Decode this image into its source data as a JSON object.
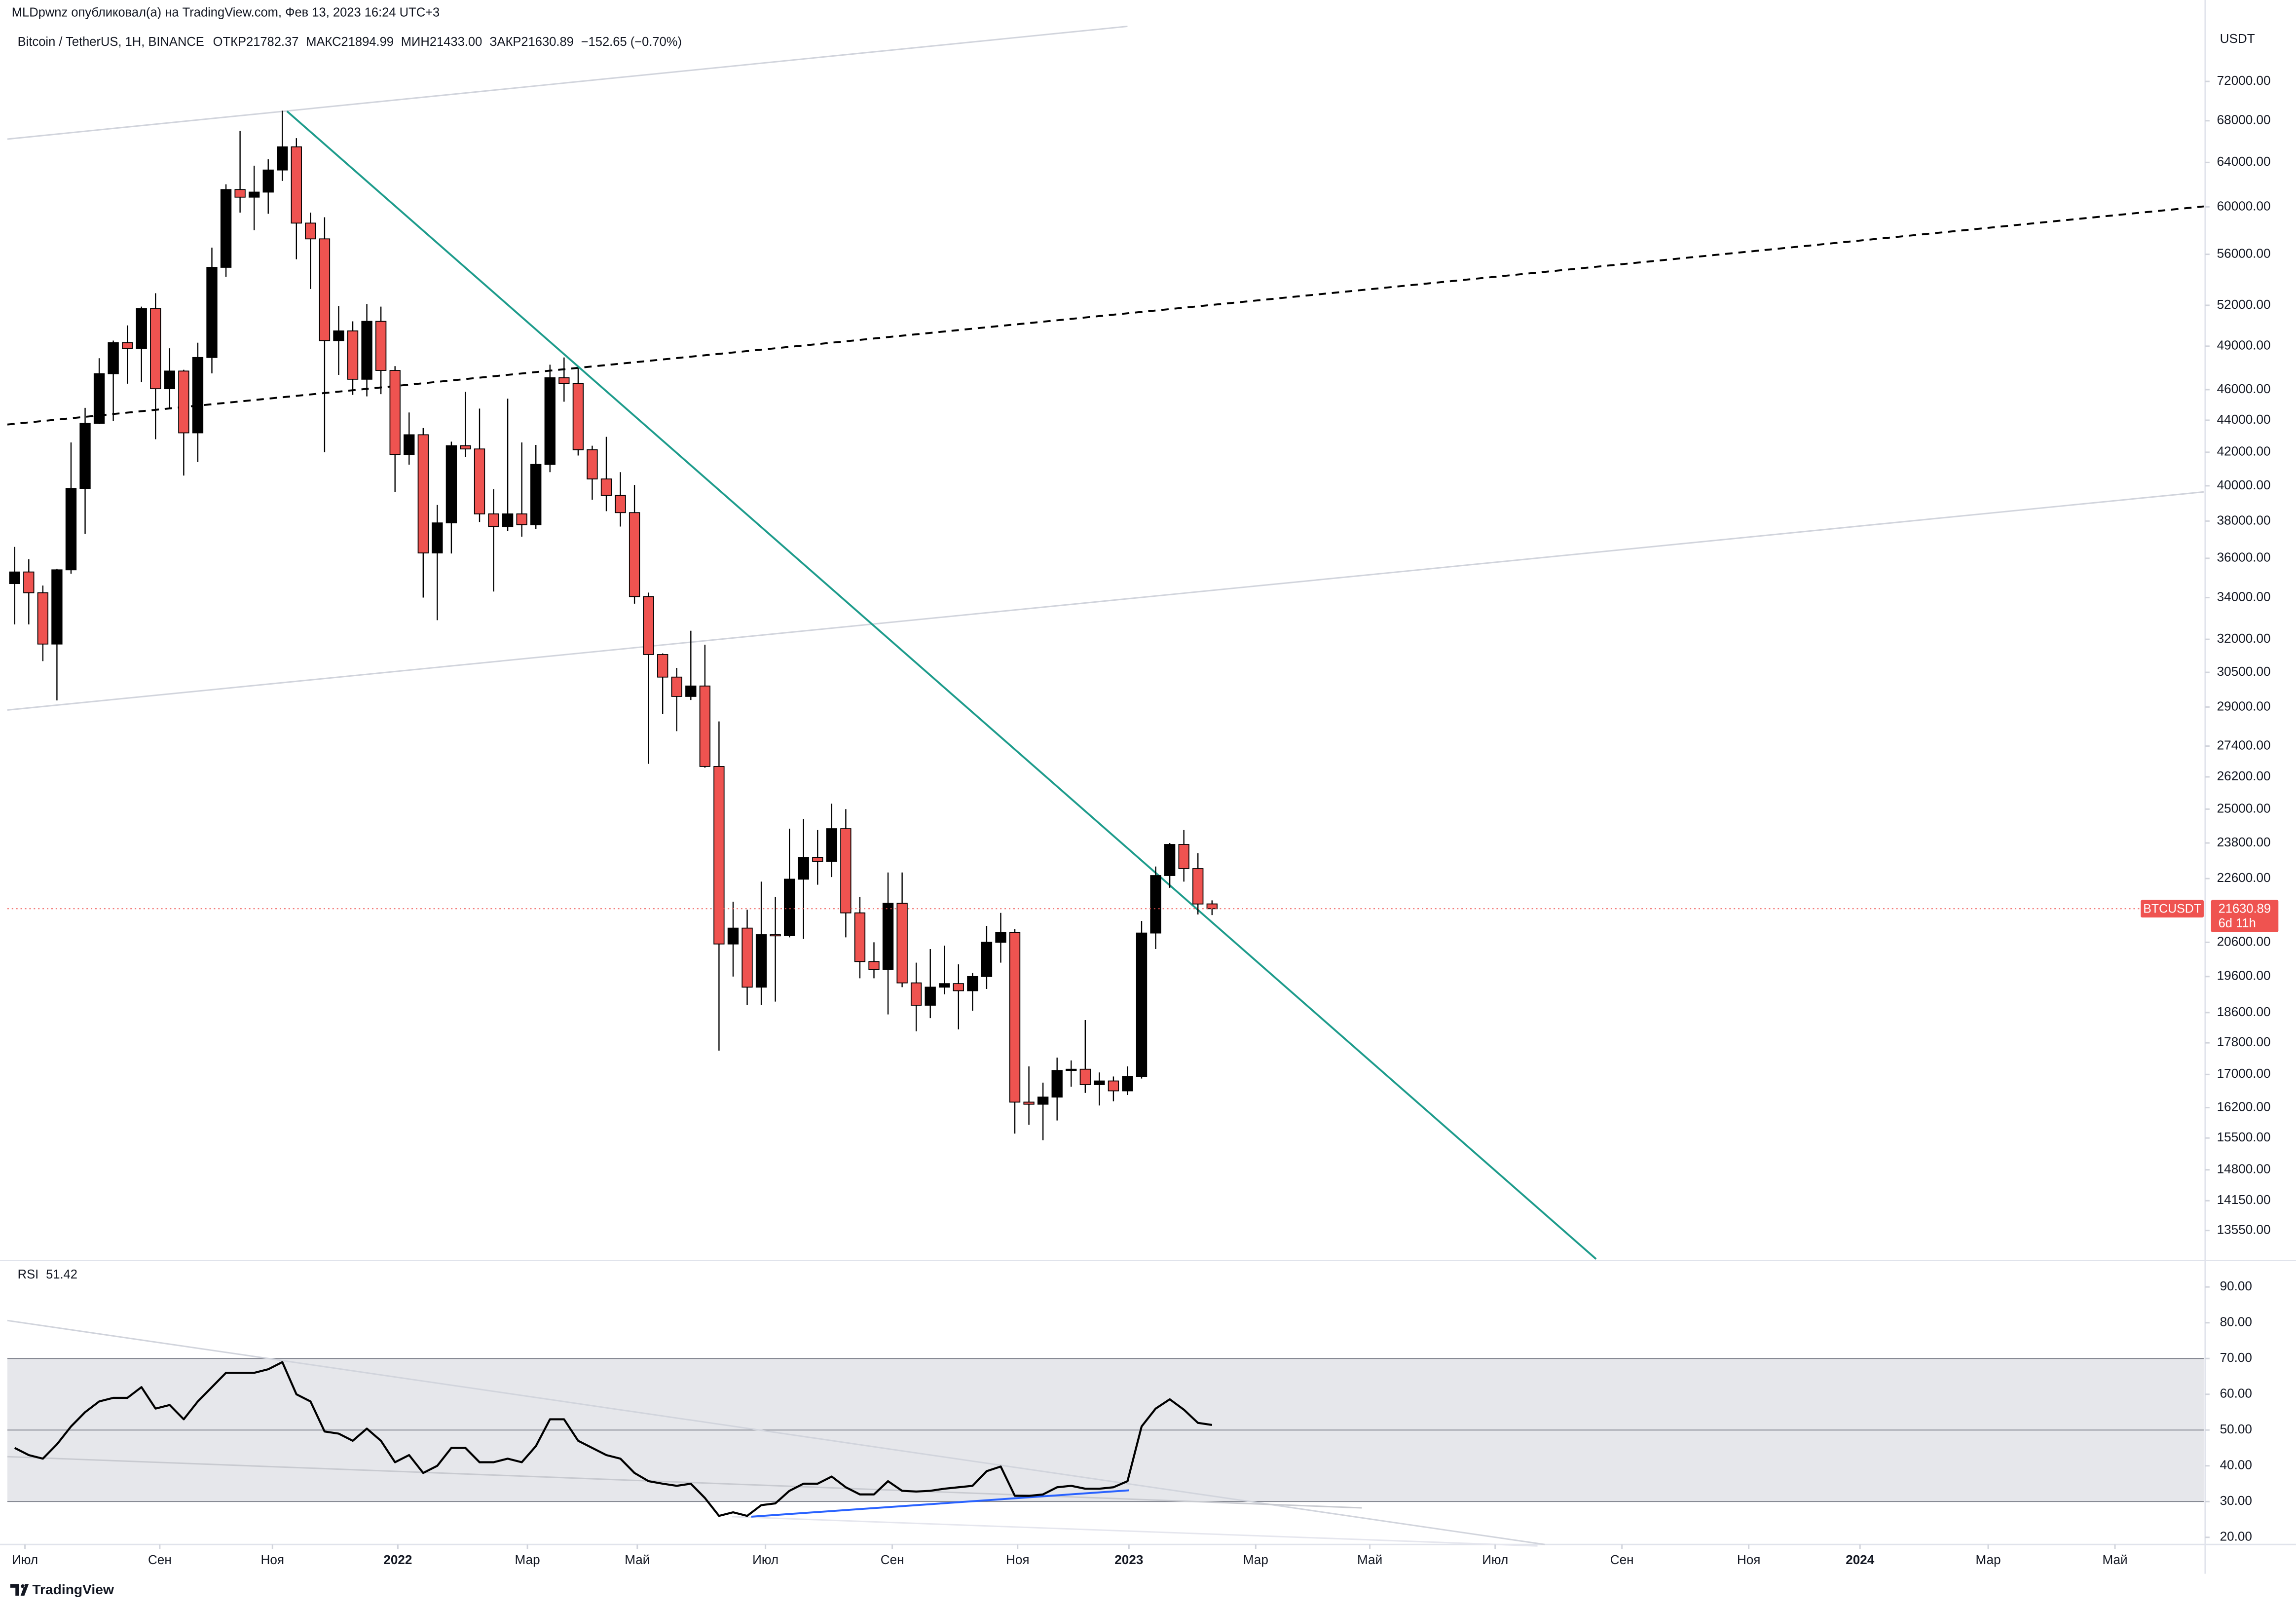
{
  "header": {
    "publisher": "MLDpwnz опубликовал(а) на TradingView.com, Фев 13, 2023 16:24 UTC+3",
    "symbol": "Bitcoin / TetherUS, 1H, BINANCE",
    "ohlc": [
      {
        "label": "ОТКР",
        "value": "21782.37"
      },
      {
        "label": "МАКС",
        "value": "21894.99"
      },
      {
        "label": "МИН",
        "value": "21433.00"
      },
      {
        "label": "ЗАКР",
        "value": "21630.89"
      }
    ],
    "change": "−152.65 (−0.70%)"
  },
  "chart_data": [
    {
      "type": "candlestick",
      "currency": "USDT",
      "log": true,
      "grid": false,
      "up_color": "#000000",
      "down_color": "#ef5350",
      "last_price": {
        "symbol": "BTCUSDT",
        "price": "21630.89",
        "countdown": "6d 11h"
      },
      "xlim": [
        -0.52,
        155.4
      ],
      "ylim": [
        13000,
        78000
      ],
      "yticks": [
        {
          "value": 72000,
          "label": "72000.00"
        },
        {
          "value": 68000,
          "label": "68000.00"
        },
        {
          "value": 64000,
          "label": "64000.00"
        },
        {
          "value": 60000,
          "label": "60000.00"
        },
        {
          "value": 56000,
          "label": "56000.00"
        },
        {
          "value": 52000,
          "label": "52000.00"
        },
        {
          "value": 49000,
          "label": "49000.00"
        },
        {
          "value": 46000,
          "label": "46000.00"
        },
        {
          "value": 44000,
          "label": "44000.00"
        },
        {
          "value": 42000,
          "label": "42000.00"
        },
        {
          "value": 40000,
          "label": "40000.00"
        },
        {
          "value": 38000,
          "label": "38000.00"
        },
        {
          "value": 36000,
          "label": "36000.00"
        },
        {
          "value": 34000,
          "label": "34000.00"
        },
        {
          "value": 32000,
          "label": "32000.00"
        },
        {
          "value": 30500,
          "label": "30500.00"
        },
        {
          "value": 29000,
          "label": "29000.00"
        },
        {
          "value": 27400,
          "label": "27400.00"
        },
        {
          "value": 26200,
          "label": "26200.00"
        },
        {
          "value": 25000,
          "label": "25000.00"
        },
        {
          "value": 23800,
          "label": "23800.00"
        },
        {
          "value": 22600,
          "label": "22600.00"
        },
        {
          "value": 20600,
          "label": "20600.00"
        },
        {
          "value": 19600,
          "label": "19600.00"
        },
        {
          "value": 18600,
          "label": "18600.00"
        },
        {
          "value": 17800,
          "label": "17800.00"
        },
        {
          "value": 17000,
          "label": "17000.00"
        },
        {
          "value": 16200,
          "label": "16200.00"
        },
        {
          "value": 15500,
          "label": "15500.00"
        },
        {
          "value": 14800,
          "label": "14800.00"
        },
        {
          "value": 14150,
          "label": "14150.00"
        },
        {
          "value": 13550,
          "label": "13550.00"
        }
      ],
      "x": [
        0,
        1,
        2,
        3,
        4,
        5,
        6,
        7,
        8,
        9,
        10,
        11,
        12,
        13,
        14,
        15,
        16,
        17,
        18,
        19,
        20,
        21,
        22,
        23,
        24,
        25,
        26,
        27,
        28,
        29,
        30,
        31,
        32,
        33,
        34,
        35,
        36,
        37,
        38,
        39,
        40,
        41,
        42,
        43,
        44,
        45,
        46,
        47,
        48,
        49,
        50,
        51,
        52,
        53,
        54,
        55,
        56,
        57,
        58,
        59,
        60,
        61,
        62,
        63,
        64,
        65,
        66,
        67,
        68,
        69,
        70,
        71,
        72,
        73,
        74,
        75,
        76,
        77,
        78,
        79,
        80,
        81,
        82,
        83,
        84,
        85
      ],
      "open": [
        34700,
        35290,
        34240,
        31780,
        35400,
        39850,
        43800,
        47080,
        49250,
        48830,
        51750,
        46060,
        47260,
        43200,
        48200,
        54950,
        61530,
        60850,
        61300,
        63300,
        65470,
        58600,
        57270,
        49400,
        50100,
        46700,
        50800,
        47300,
        41860,
        43080,
        36280,
        37900,
        42400,
        42200,
        38400,
        37700,
        38400,
        37800,
        41260,
        46800,
        46400,
        42150,
        40400,
        39450,
        38470,
        34050,
        31300,
        30290,
        29450,
        29900,
        26600,
        20550,
        21030,
        19300,
        20830,
        20800,
        22580,
        23300,
        23170,
        24300,
        21500,
        20030,
        19800,
        21800,
        19420,
        18800,
        19300,
        19400,
        19200,
        19600,
        20600,
        20900,
        16330,
        16280,
        16450,
        17100,
        17130,
        16750,
        16840,
        16600,
        16950,
        20880,
        22700,
        23750,
        22930,
        21782.37
      ],
      "high": [
        36600,
        35950,
        34600,
        35450,
        42600,
        44800,
        48150,
        49400,
        50500,
        51900,
        52920,
        48850,
        47350,
        49250,
        56550,
        62000,
        67000,
        63700,
        64300,
        69000,
        66300,
        59500,
        59100,
        51950,
        50800,
        52100,
        51900,
        47600,
        44500,
        43500,
        38900,
        42650,
        45850,
        44750,
        39800,
        45400,
        42600,
        42450,
        47700,
        48200,
        47450,
        42400,
        42950,
        40800,
        40050,
        34250,
        31350,
        30700,
        32400,
        31750,
        28400,
        21850,
        21600,
        22500,
        22000,
        24300,
        24650,
        24250,
        25200,
        25000,
        22000,
        20600,
        22800,
        22800,
        20000,
        20400,
        20500,
        19950,
        19700,
        21100,
        21500,
        21000,
        17200,
        16800,
        17420,
        17350,
        18400,
        17050,
        16950,
        17200,
        21250,
        23000,
        23800,
        24250,
        23450,
        21894.99
      ],
      "low": [
        32700,
        32700,
        31000,
        29280,
        35200,
        37300,
        43750,
        43950,
        46400,
        46500,
        42800,
        44700,
        40600,
        41400,
        47100,
        54200,
        59500,
        58000,
        59400,
        62300,
        55600,
        53250,
        42000,
        47000,
        45650,
        45550,
        45700,
        39650,
        41250,
        34000,
        32900,
        36250,
        41700,
        37950,
        34300,
        37450,
        37150,
        37550,
        40800,
        45200,
        41800,
        39200,
        38550,
        37700,
        33700,
        26700,
        28700,
        28000,
        29300,
        26550,
        17600,
        19600,
        18800,
        18800,
        18900,
        20750,
        20700,
        22400,
        22650,
        20750,
        19550,
        19550,
        18550,
        19300,
        18100,
        18450,
        19100,
        18150,
        18650,
        19250,
        20000,
        15600,
        15800,
        15450,
        15900,
        16700,
        16550,
        16250,
        16350,
        16500,
        16900,
        20400,
        22300,
        22500,
        21450,
        21433
      ],
      "close": [
        35290,
        34240,
        31780,
        35400,
        39850,
        43800,
        47080,
        49250,
        48830,
        51750,
        46060,
        47260,
        43200,
        48200,
        54950,
        61530,
        60850,
        61300,
        63300,
        65470,
        58600,
        57270,
        49400,
        50100,
        46700,
        50800,
        47300,
        41860,
        43080,
        36280,
        37900,
        42400,
        42200,
        38400,
        37700,
        38400,
        37800,
        41260,
        46800,
        46400,
        42150,
        40400,
        39450,
        38470,
        34050,
        31300,
        30290,
        29450,
        29900,
        26600,
        20550,
        21030,
        19300,
        20830,
        20800,
        22580,
        23300,
        23170,
        24300,
        21500,
        20030,
        19800,
        21800,
        19420,
        18800,
        19300,
        19400,
        19200,
        19600,
        20600,
        20900,
        16330,
        16280,
        16450,
        17100,
        17130,
        16750,
        16840,
        16600,
        16950,
        20880,
        22700,
        23750,
        22930,
        21780,
        21630.89
      ]
    },
    {
      "type": "line",
      "title": "RSI",
      "color": "#000000",
      "xlim": [
        -0.52,
        155.4
      ],
      "ylim": [
        18,
        97
      ],
      "band": [
        30,
        70
      ],
      "band_color": "#e6e7eb",
      "hlines": [
        70,
        50,
        30
      ],
      "yticks": [
        {
          "value": 90,
          "label": "90.00"
        },
        {
          "value": 80,
          "label": "80.00"
        },
        {
          "value": 70,
          "label": "70.00"
        },
        {
          "value": 60,
          "label": "60.00"
        },
        {
          "value": 50,
          "label": "50.00"
        },
        {
          "value": 40,
          "label": "40.00"
        },
        {
          "value": 30,
          "label": "30.00"
        },
        {
          "value": 20,
          "label": "20.00"
        }
      ],
      "xticks": [
        {
          "value": 0.73,
          "label": "Июл"
        },
        {
          "value": 10.3,
          "label": "Сен"
        },
        {
          "value": 18.3,
          "label": "Ноя"
        },
        {
          "value": 27.2,
          "label": "2022"
        },
        {
          "value": 36.4,
          "label": "Мар"
        },
        {
          "value": 44.2,
          "label": "Май"
        },
        {
          "value": 53.3,
          "label": "Июл"
        },
        {
          "value": 62.3,
          "label": "Сен"
        },
        {
          "value": 71.2,
          "label": "Ноя"
        },
        {
          "value": 79.1,
          "label": "2023"
        },
        {
          "value": 88.1,
          "label": "Мар"
        },
        {
          "value": 96.2,
          "label": "Май"
        },
        {
          "value": 105.1,
          "label": "Июл"
        },
        {
          "value": 114.1,
          "label": "Сен"
        },
        {
          "value": 123.1,
          "label": "Ноя"
        },
        {
          "value": 131.0,
          "label": "2024"
        },
        {
          "value": 140.1,
          "label": "Мар"
        },
        {
          "value": 149.1,
          "label": "Май"
        }
      ],
      "x": [
        0,
        1,
        2,
        3,
        4,
        5,
        6,
        7,
        8,
        9,
        10,
        11,
        12,
        13,
        14,
        15,
        16,
        17,
        18,
        19,
        20,
        21,
        22,
        23,
        24,
        25,
        26,
        27,
        28,
        29,
        30,
        31,
        32,
        33,
        34,
        35,
        36,
        37,
        38,
        39,
        40,
        41,
        42,
        43,
        44,
        45,
        46,
        47,
        48,
        49,
        50,
        51,
        52,
        53,
        54,
        55,
        56,
        57,
        58,
        59,
        60,
        61,
        62,
        63,
        64,
        65,
        66,
        67,
        68,
        69,
        70,
        71,
        72,
        73,
        74,
        75,
        76,
        77,
        78,
        79,
        80,
        81,
        82,
        83,
        84,
        85
      ],
      "values": [
        45,
        43,
        42,
        46,
        51,
        55,
        58,
        59,
        59,
        62,
        56,
        57,
        53,
        58,
        62,
        66,
        66,
        66,
        67,
        69,
        60,
        58,
        49.6,
        49,
        47,
        50.4,
        47,
        41,
        43,
        38,
        40,
        45,
        45,
        41,
        41,
        42,
        41,
        45.5,
        53,
        53,
        47,
        45,
        43,
        42,
        38,
        35.7,
        35,
        34.4,
        35,
        31,
        26,
        27,
        26,
        29,
        29.5,
        33,
        35,
        35,
        37,
        34,
        32,
        32,
        35.7,
        33,
        32.8,
        33,
        33.6,
        34,
        34.4,
        38.5,
        39.8,
        31.6,
        31.6,
        32,
        34,
        34.4,
        33.6,
        33.6,
        34,
        35.7,
        51,
        56,
        58.6,
        55.7,
        52,
        51.42
      ]
    }
  ],
  "footer": {
    "brand": "TradingView"
  }
}
